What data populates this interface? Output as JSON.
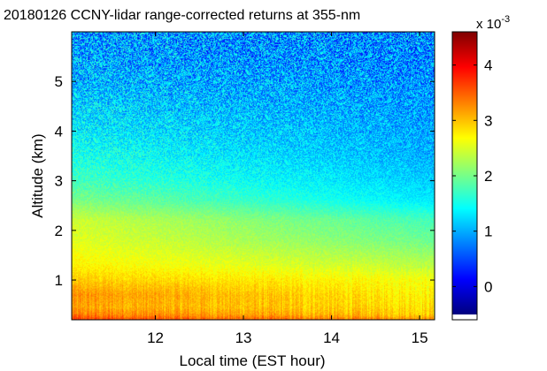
{
  "chart_data": {
    "type": "heatmap",
    "title": "20180126 CCNY-lidar range-corrected returns at 355-nm",
    "xlabel": "Local time (EST hour)",
    "ylabel": "Altitude (km)",
    "xlim": [
      11.05,
      15.17
    ],
    "ylim": [
      0.2,
      6.0
    ],
    "x_ticks": [
      12,
      13,
      14,
      15
    ],
    "x_tick_labels": [
      "12",
      "13",
      "14",
      "15"
    ],
    "y_ticks": [
      1,
      2,
      3,
      4,
      5
    ],
    "y_tick_labels": [
      "1",
      "2",
      "3",
      "4",
      "5"
    ],
    "colorbar": {
      "colormap": "jet",
      "range": [
        -0.6,
        4.6
      ],
      "ticks": [
        0,
        1,
        2,
        3,
        4
      ],
      "tick_labels": [
        "0",
        "1",
        "2",
        "3",
        "4"
      ],
      "multiplier": "x 10",
      "exponent": "-3"
    },
    "altitude_profile_km": [
      0.2,
      0.3,
      0.45,
      0.7,
      1.0,
      1.3,
      1.8,
      2.2,
      2.6,
      3.0,
      3.5,
      4.0,
      4.5,
      5.0,
      5.5,
      6.0
    ],
    "values_start": [
      3.6,
      3.3,
      3.1,
      3.2,
      2.9,
      2.7,
      2.5,
      2.4,
      2.0,
      1.7,
      1.5,
      1.3,
      1.15,
      1.0,
      0.9,
      0.85
    ],
    "values_end": [
      3.2,
      2.9,
      2.8,
      2.7,
      2.6,
      2.3,
      1.9,
      1.7,
      1.25,
      1.1,
      0.95,
      0.9,
      0.85,
      0.8,
      0.75,
      0.75
    ]
  }
}
